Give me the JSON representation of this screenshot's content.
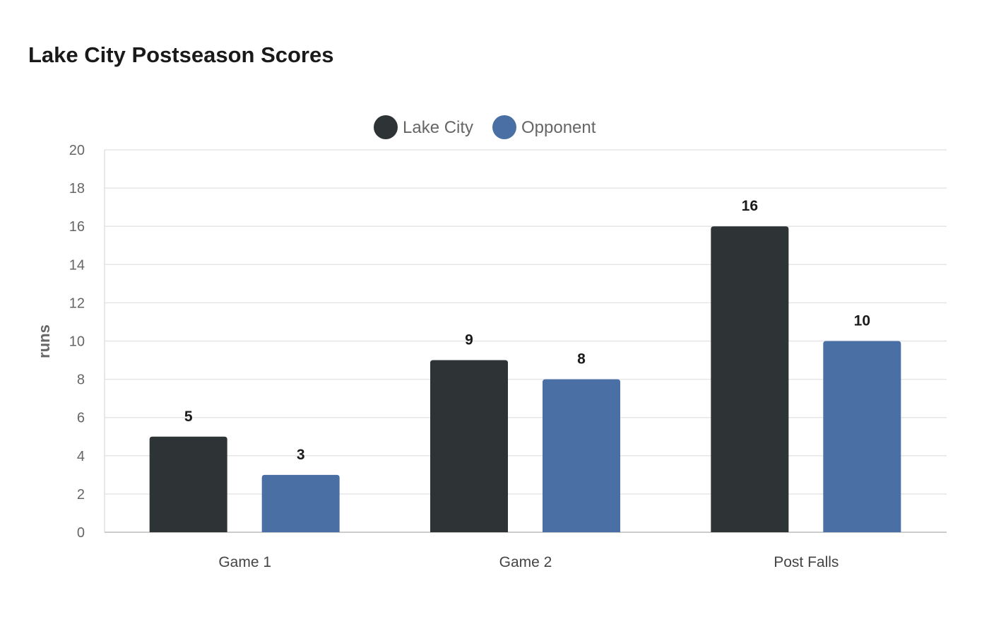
{
  "chart_data": {
    "type": "bar",
    "title": "Lake City Postseason Scores",
    "xlabel": "",
    "ylabel": "runs",
    "categories": [
      "Game 1",
      "Game 2",
      "Post Falls"
    ],
    "series": [
      {
        "name": "Lake City",
        "values": [
          5,
          9,
          16
        ],
        "color": "#2e3436"
      },
      {
        "name": "Opponent",
        "values": [
          3,
          8,
          10
        ],
        "color": "#4a6fa5"
      }
    ],
    "ylim": [
      0,
      20
    ],
    "yticks": [
      0,
      2,
      4,
      6,
      8,
      10,
      12,
      14,
      16,
      18,
      20
    ],
    "grid": true,
    "legend_position": "top-center",
    "data_labels": true
  }
}
